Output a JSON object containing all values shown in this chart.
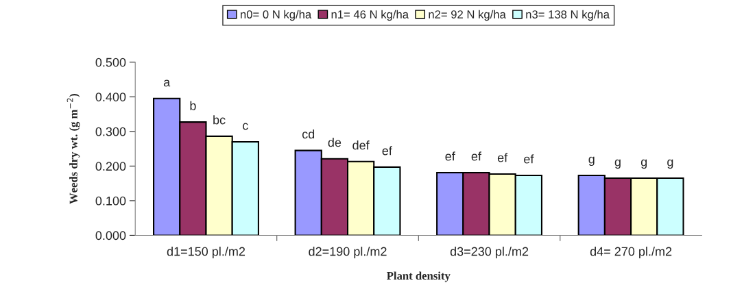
{
  "chart_data": {
    "type": "bar",
    "xlabel": "Plant density",
    "ylabel": "Weeds dry wt. (g m$^{−2}$)",
    "categories": [
      "d1=150 pl./m2",
      "d2=190 pl./m2",
      "d3=230 pl./m2",
      "d4= 270 pl./m2"
    ],
    "series": [
      {
        "name": "n0= 0 N kg/ha",
        "color": "#9999ff",
        "values": [
          0.395,
          0.245,
          0.181,
          0.173
        ],
        "value_labels": [
          "a",
          "cd",
          "ef",
          "g"
        ]
      },
      {
        "name": "n1= 46 N kg/ha",
        "color": "#993366",
        "values": [
          0.327,
          0.221,
          0.181,
          0.165
        ],
        "value_labels": [
          "b",
          "de",
          "ef",
          "g"
        ]
      },
      {
        "name": "n2= 92 N kg/ha",
        "color": "#ffffcc",
        "values": [
          0.286,
          0.213,
          0.177,
          0.165
        ],
        "value_labels": [
          "bc",
          "def",
          "ef",
          "g"
        ]
      },
      {
        "name": "n3= 138 N kg/ha",
        "color": "#ccffff",
        "values": [
          0.27,
          0.197,
          0.173,
          0.165
        ],
        "value_labels": [
          "c",
          "ef",
          "ef",
          "g"
        ]
      }
    ],
    "ylim": [
      0,
      0.5
    ],
    "yticks": [
      {
        "value": 0,
        "label": "0.000"
      },
      {
        "value": 0.1,
        "label": "0.100"
      },
      {
        "value": 0.2,
        "label": "0.200"
      },
      {
        "value": 0.3,
        "label": "0.300"
      },
      {
        "value": 0.4,
        "label": "0.400"
      },
      {
        "value": 0.5,
        "label": "0.500"
      }
    ],
    "grid": false,
    "legend": "top"
  }
}
